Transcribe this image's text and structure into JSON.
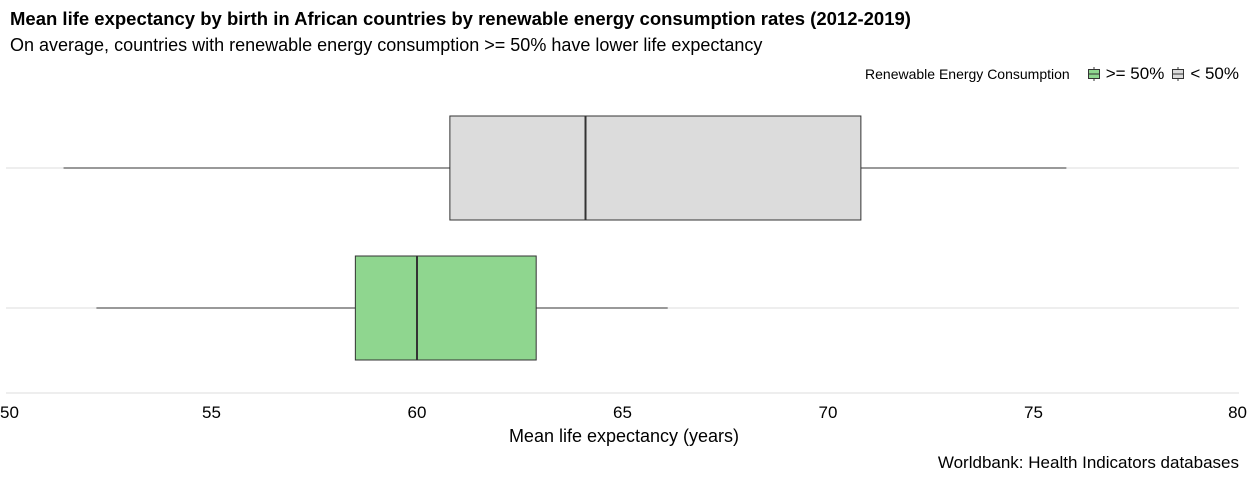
{
  "chart_data": {
    "type": "boxplot",
    "orientation": "horizontal",
    "title": "Mean life expectancy by birth in African countries by renewable energy consumption rates (2012-2019)",
    "subtitle": "On average, countries with renewable energy consumption >= 50% have lower life expectancy",
    "xlabel": "Mean life expectancy (years)",
    "ylabel": "",
    "xlim": [
      50,
      80
    ],
    "xticks": [
      "50",
      "55",
      "60",
      "65",
      "70",
      "75",
      "80"
    ],
    "caption": "Worldbank: Health Indicators databases",
    "grid": true,
    "legend": {
      "title": "Renewable Energy Consumption",
      "position": "top-right",
      "entries": [
        {
          "label": ">= 50%",
          "color": "#8fd68f"
        },
        {
          "label": "< 50%",
          "color": "#dcdcdc"
        }
      ]
    },
    "series": [
      {
        "name": "< 50%",
        "color": "#dcdcdc",
        "min": 51.4,
        "q1": 60.8,
        "median": 64.1,
        "q3": 70.8,
        "max": 75.8
      },
      {
        "name": ">= 50%",
        "color": "#8fd68f",
        "min": 52.2,
        "q1": 58.5,
        "median": 60.0,
        "q3": 62.9,
        "max": 66.1
      }
    ]
  }
}
